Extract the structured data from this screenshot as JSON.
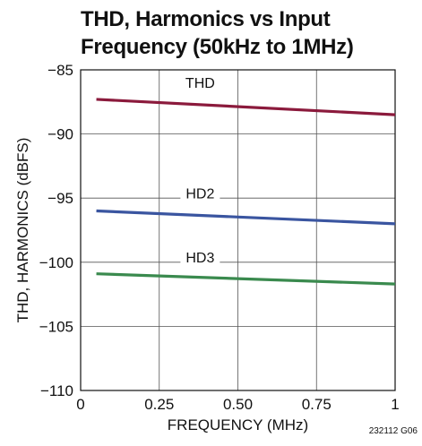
{
  "chart_data": {
    "type": "line",
    "title": "THD, Harmonics vs Input Frequency (50kHz to 1MHz)",
    "title_lines": [
      "THD, Harmonics vs Input",
      "Frequency (50kHz to 1MHz)"
    ],
    "xlabel": "FREQUENCY (MHz)",
    "ylabel": "THD, HARMONICS (dBFS)",
    "xlim": [
      0,
      1
    ],
    "ylim": [
      -110,
      -85
    ],
    "xticks": [
      0,
      0.25,
      0.5,
      0.75,
      1
    ],
    "xtick_labels": [
      "0",
      "0.25",
      "0.50",
      "0.75",
      "1"
    ],
    "yticks": [
      -85,
      -90,
      -95,
      -100,
      -105,
      -110
    ],
    "ytick_labels": [
      "−85",
      "−90",
      "−95",
      "−100",
      "−105",
      "−110"
    ],
    "grid": true,
    "series": [
      {
        "name": "THD",
        "color": "#8b1a3c",
        "x": [
          0.05,
          1.0
        ],
        "y": [
          -87.3,
          -88.5
        ]
      },
      {
        "name": "HD2",
        "color": "#3a55a0",
        "x": [
          0.05,
          1.0
        ],
        "y": [
          -96.0,
          -97.0
        ]
      },
      {
        "name": "HD3",
        "color": "#3a8a4e",
        "x": [
          0.05,
          1.0
        ],
        "y": [
          -100.9,
          -101.7
        ]
      }
    ],
    "annotation": "232112 G06"
  }
}
